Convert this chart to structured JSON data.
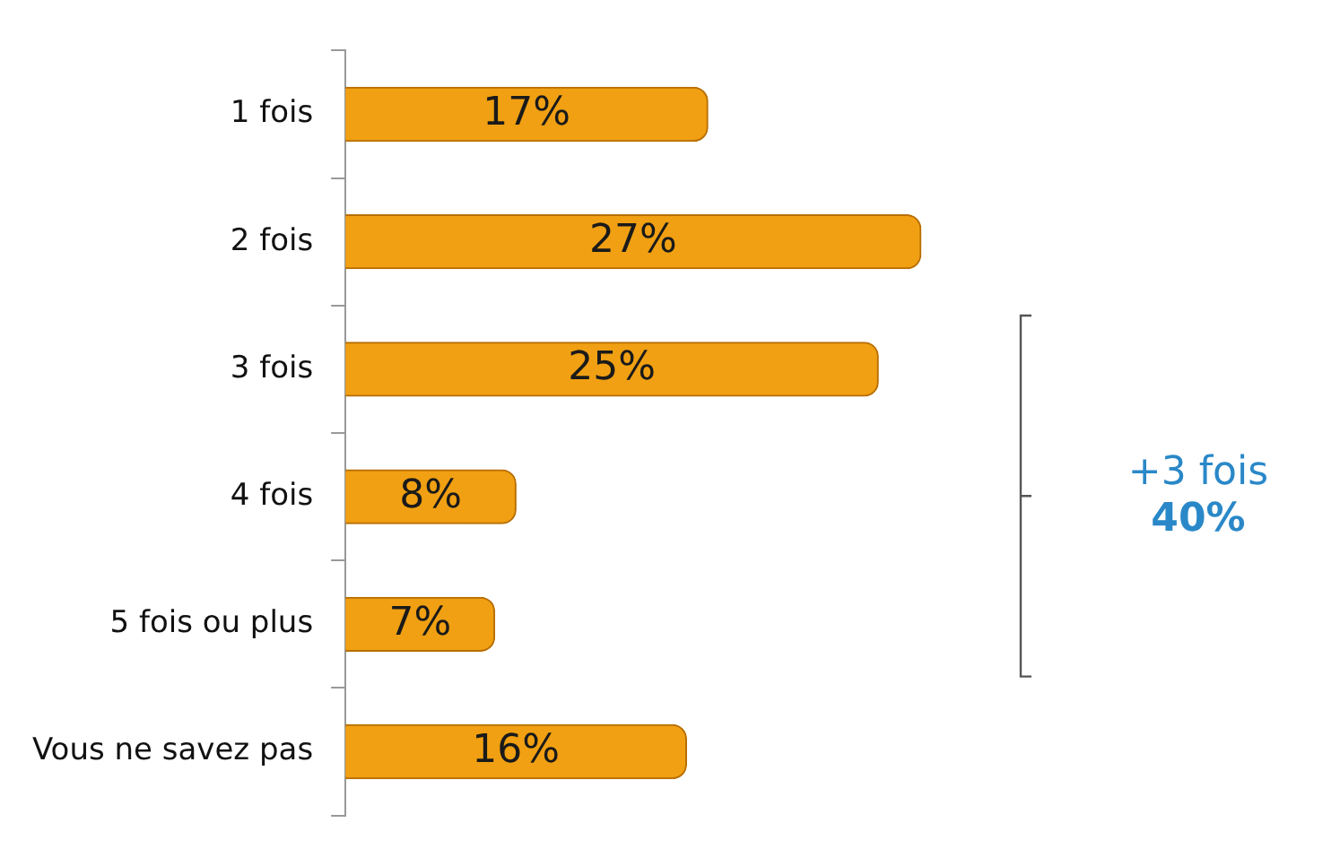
{
  "chart_data": {
    "type": "bar",
    "orientation": "horizontal",
    "categories": [
      "1 fois",
      "2 fois",
      "3 fois",
      "4 fois",
      "5 fois ou plus",
      "Vous ne savez pas"
    ],
    "values": [
      17,
      27,
      25,
      8,
      7,
      16
    ],
    "value_labels": [
      "17%",
      "27%",
      "25%",
      "8%",
      "7%",
      "16%"
    ],
    "color": "#f0a012",
    "legend": false,
    "annotations": [
      "+3 fois",
      "40%"
    ]
  }
}
